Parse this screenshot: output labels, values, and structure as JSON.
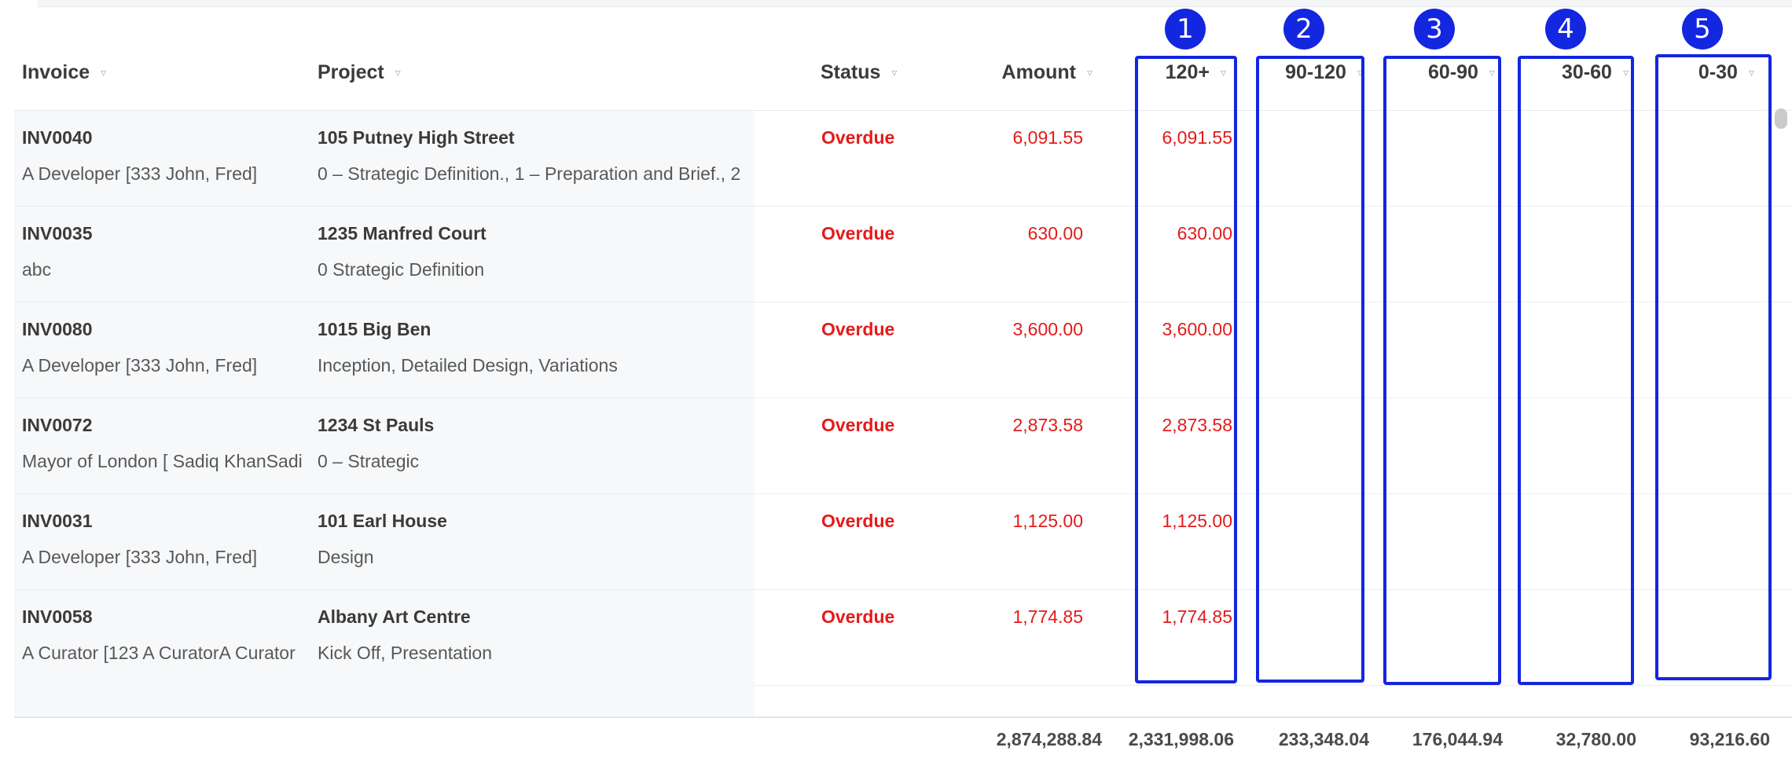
{
  "columns": {
    "invoice": "Invoice",
    "project": "Project",
    "status": "Status",
    "amount": "Amount",
    "b120": "120+",
    "b90": "90-120",
    "b60": "60-90",
    "b30": "30-60",
    "b0": "0-30"
  },
  "rows": [
    {
      "invoice": "INV0040",
      "client": "A Developer [333 John, Fred]",
      "project": "105 Putney High Street",
      "stages": "0 – Strategic Definition., 1 – Preparation and Brief., 2",
      "status": "Overdue",
      "amount": "6,091.55",
      "b120": "6,091.55"
    },
    {
      "invoice": "INV0035",
      "client": "abc",
      "project": "1235 Manfred Court",
      "stages": "0 Strategic Definition",
      "status": "Overdue",
      "amount": "630.00",
      "b120": "630.00"
    },
    {
      "invoice": "INV0080",
      "client": "A Developer [333 John, Fred]",
      "project": "1015 Big Ben",
      "stages": "Inception, Detailed Design, Variations",
      "status": "Overdue",
      "amount": "3,600.00",
      "b120": "3,600.00"
    },
    {
      "invoice": "INV0072",
      "client": "Mayor of London [ Sadiq KhanSadiq",
      "project": "1234 St Pauls",
      "stages": "0 – Strategic",
      "status": "Overdue",
      "amount": "2,873.58",
      "b120": "2,873.58"
    },
    {
      "invoice": "INV0031",
      "client": "A Developer [333 John, Fred]",
      "project": "101 Earl House",
      "stages": "Design",
      "status": "Overdue",
      "amount": "1,125.00",
      "b120": "1,125.00"
    },
    {
      "invoice": "INV0058",
      "client": "A Curator [123 A CuratorA Curator",
      "project": "Albany Art Centre",
      "stages": "Kick Off, Presentation",
      "status": "Overdue",
      "amount": "1,774.85",
      "b120": "1,774.85"
    }
  ],
  "totals": {
    "amount": "2,874,288.84",
    "b120": "2,331,998.06",
    "b90": "233,348.04",
    "b60": "176,044.94",
    "b30": "32,780.00",
    "b0": "93,216.60"
  },
  "annotations": [
    "1",
    "2",
    "3",
    "4",
    "5"
  ],
  "colors": {
    "overdue": "#e31b1b",
    "annotation": "#1326e0"
  }
}
